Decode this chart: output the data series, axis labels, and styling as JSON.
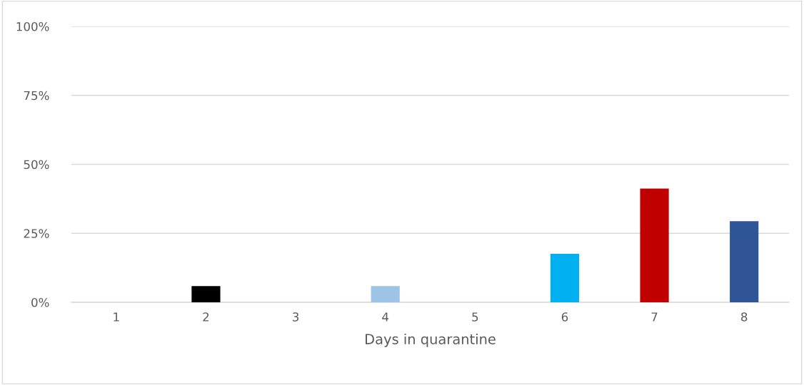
{
  "chart_data": {
    "type": "bar",
    "xlabel": "Days in quarantine",
    "categories": [
      "1",
      "2",
      "3",
      "4",
      "5",
      "6",
      "7",
      "8"
    ],
    "values": [
      0,
      5.9,
      0,
      5.9,
      0,
      17.6,
      41.2,
      29.4
    ],
    "colors": [
      "#000000",
      "#000000",
      "#000000",
      "#9dc3e6",
      "#000000",
      "#00b0f0",
      "#c00000",
      "#2f5597"
    ],
    "ylim": [
      0,
      100
    ],
    "yticks": [
      {
        "value": 0,
        "label": "0%"
      },
      {
        "value": 25,
        "label": "25%"
      },
      {
        "value": 50,
        "label": "50%"
      },
      {
        "value": 75,
        "label": "75%"
      },
      {
        "value": 100,
        "label": "100%"
      }
    ],
    "grid": "y",
    "legend": false
  }
}
